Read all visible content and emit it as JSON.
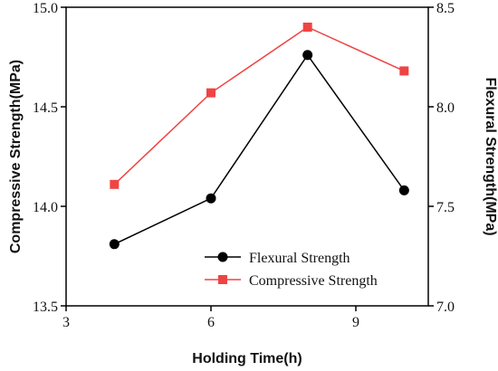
{
  "chart_data": {
    "type": "line",
    "title": "",
    "xlabel": "Holding Time(h)",
    "ylabel_left": "Compressive Strength(MPa)",
    "ylabel_right": "Flexural Strength(MPa)",
    "xlim": [
      3,
      10.5
    ],
    "ylim_left": [
      13.5,
      15.0
    ],
    "ylim_right": [
      7.0,
      8.5
    ],
    "x_ticks": [
      "3",
      "6",
      "9"
    ],
    "y_left_ticks": [
      "13.5",
      "14.0",
      "14.5",
      "15.0"
    ],
    "y_right_ticks": [
      "7.0",
      "7.5",
      "8.0",
      "8.5"
    ],
    "grid": false,
    "legend_position": "lower-right",
    "series": [
      {
        "name": "Flexural Strength",
        "axis": "right",
        "color": "#000000",
        "marker": "circle",
        "x": [
          4,
          6,
          8,
          10
        ],
        "y": [
          7.31,
          7.54,
          8.26,
          7.58
        ]
      },
      {
        "name": "Compressive Strength",
        "axis": "left",
        "color": "#ef4444",
        "marker": "square",
        "x": [
          4,
          6,
          8,
          10
        ],
        "y": [
          14.11,
          14.57,
          14.9,
          14.68
        ]
      }
    ]
  }
}
